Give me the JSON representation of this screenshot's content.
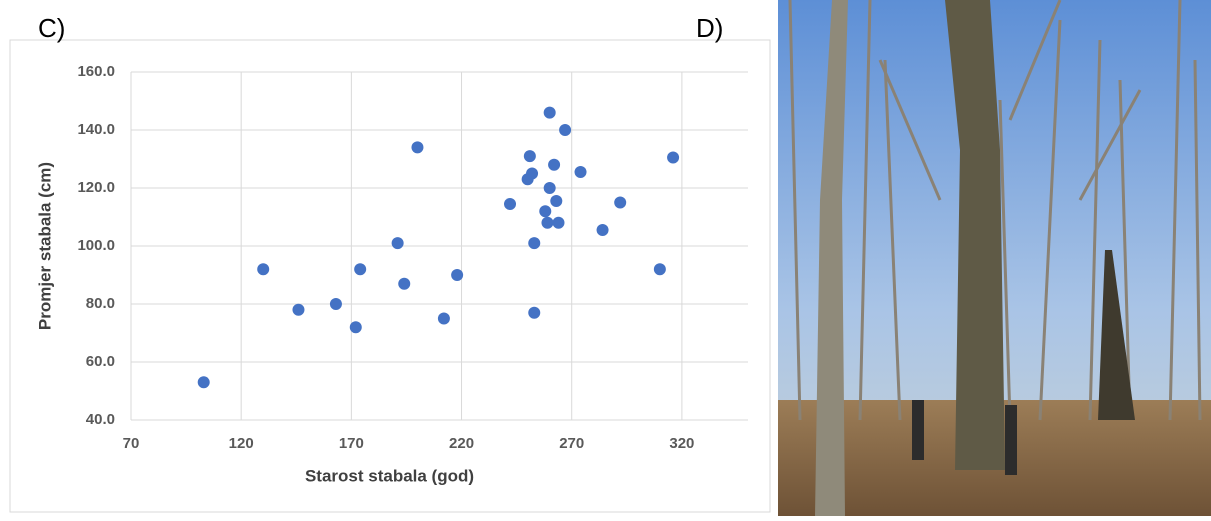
{
  "panels": [
    "C)",
    "D)"
  ],
  "chart_data": {
    "type": "scatter",
    "x_label": "Starost stabala (god)",
    "y_label": "Promjer stabala (cm)",
    "color": "#4472c4",
    "grid": true,
    "xlim": [
      70,
      350
    ],
    "xticks": [
      70,
      120,
      170,
      220,
      270,
      320
    ],
    "ylim": [
      40,
      160
    ],
    "yticks": [
      {
        "value": 40,
        "label": "40.0"
      },
      {
        "value": 60,
        "label": "60.0"
      },
      {
        "value": 80,
        "label": "80.0"
      },
      {
        "value": 100,
        "label": "100.0"
      },
      {
        "value": 120,
        "label": "120.0"
      },
      {
        "value": 140,
        "label": "140.0"
      },
      {
        "value": 160,
        "label": "160.0"
      }
    ],
    "x": [
      103,
      130,
      146,
      163,
      172,
      174,
      191,
      194,
      200,
      212,
      218,
      242,
      250,
      251,
      252,
      253,
      253,
      258,
      259,
      260,
      260,
      262,
      263,
      264,
      267,
      274,
      284,
      292,
      310,
      316
    ],
    "values": [
      53,
      92,
      78,
      80,
      72,
      92,
      101,
      87,
      134,
      75,
      90,
      114.5,
      123,
      131,
      125,
      77,
      101,
      112,
      108,
      146,
      120,
      128,
      115.5,
      108,
      140,
      125.5,
      105.5,
      115,
      92,
      130.5
    ]
  }
}
